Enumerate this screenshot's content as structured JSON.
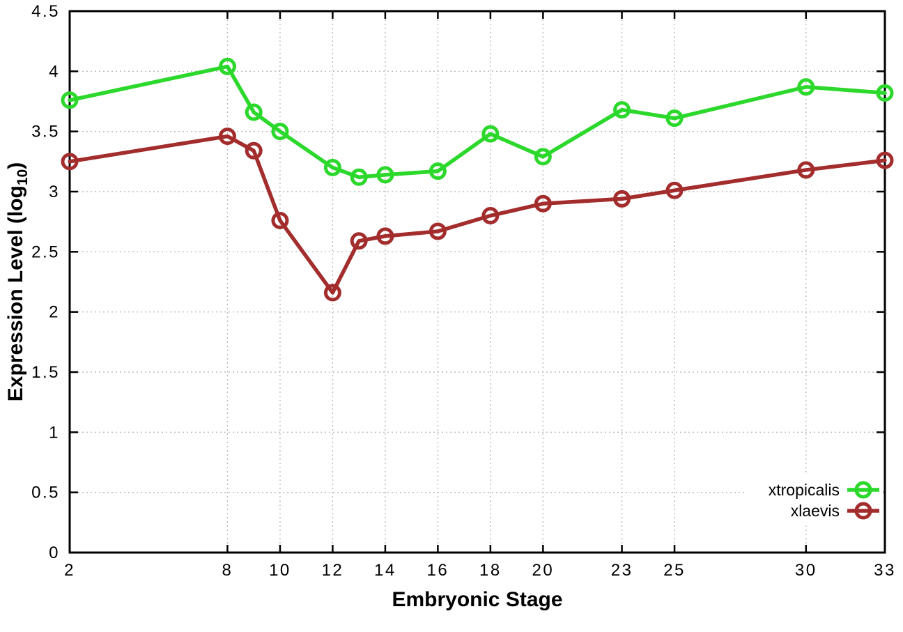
{
  "chart_data": {
    "type": "line",
    "title": "",
    "xlabel": "Embryonic Stage",
    "ylabel": "Expression Level (log10)",
    "ylabel_parts": {
      "prefix": "Expression Level (log",
      "sub": "10",
      "suffix": ")"
    },
    "x": [
      2,
      8,
      9,
      10,
      12,
      13,
      14,
      16,
      18,
      20,
      23,
      25,
      30,
      33
    ],
    "series": [
      {
        "name": "xtropicalis",
        "color": "#2bd82b",
        "values": [
          3.76,
          4.04,
          3.66,
          3.5,
          3.2,
          3.12,
          3.14,
          3.17,
          3.48,
          3.29,
          3.68,
          3.61,
          3.87,
          3.82
        ]
      },
      {
        "name": "xlaevis",
        "color": "#a32d2d",
        "values": [
          3.25,
          3.46,
          3.34,
          2.76,
          2.16,
          2.59,
          2.63,
          2.67,
          2.8,
          2.9,
          2.94,
          3.01,
          3.18,
          3.26
        ]
      }
    ],
    "xlim": [
      2,
      33
    ],
    "ylim": [
      0,
      4.5
    ],
    "x_ticks": [
      2,
      8,
      10,
      12,
      14,
      16,
      18,
      20,
      23,
      25,
      30,
      33
    ],
    "y_ticks": [
      0,
      0.5,
      1,
      1.5,
      2,
      2.5,
      3,
      3.5,
      4,
      4.5
    ],
    "grid": true,
    "grid_style": "dotted",
    "legend_position": "bottom-right",
    "marker": "open-circle",
    "colors": {
      "background": "#ffffff",
      "axis": "#000000",
      "grid": "#bbbbbb",
      "text": "#000000",
      "legend_box": "#ffffff"
    }
  }
}
